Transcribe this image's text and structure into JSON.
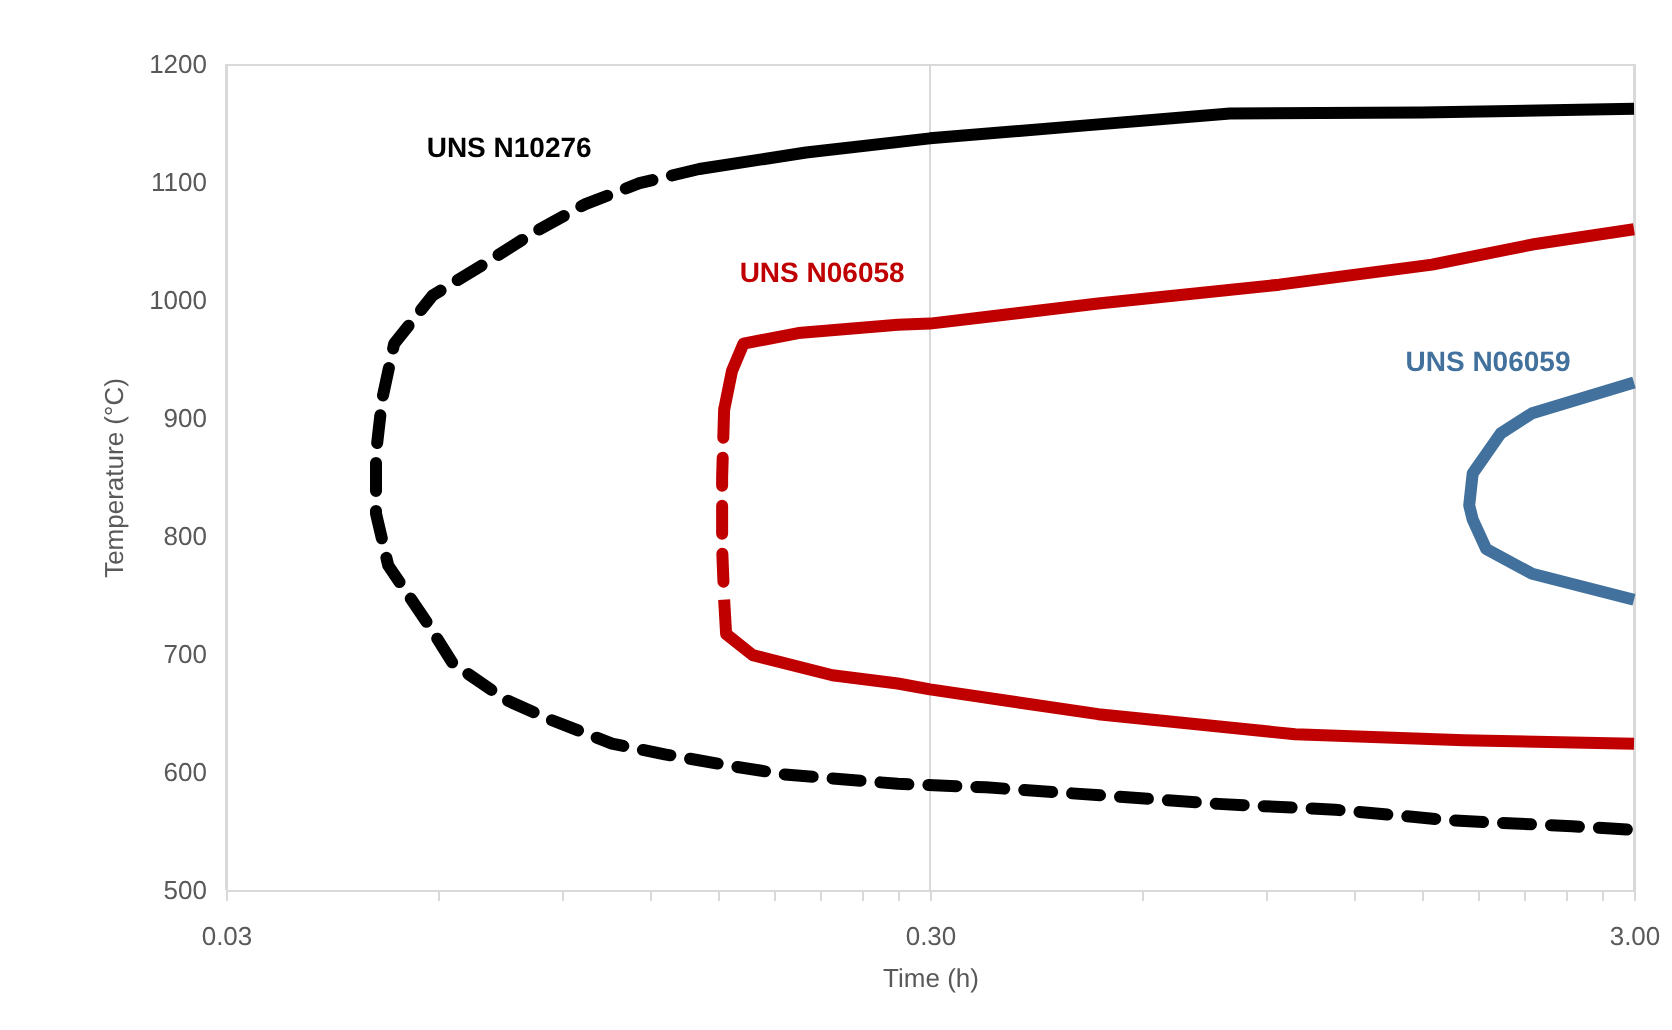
{
  "chart_data": {
    "type": "line",
    "xlabel": "Time (h)",
    "ylabel": "Temperature (°C)",
    "log": "x",
    "grid": "x",
    "xlim": [
      0.03,
      3
    ],
    "ylim": [
      500,
      1200
    ],
    "xticks": [
      0.03,
      {
        "value": 0.06,
        "label": null
      },
      {
        "value": 0.09,
        "label": null
      },
      {
        "value": 0.12,
        "label": null
      },
      {
        "value": 0.15,
        "label": null
      },
      {
        "value": 0.18,
        "label": null
      },
      {
        "value": 0.21,
        "label": null
      },
      {
        "value": 0.24,
        "label": null
      },
      {
        "value": 0.27,
        "label": null
      },
      {
        "value": 0.3,
        "label": "0.30"
      },
      {
        "value": 0.6,
        "label": null
      },
      {
        "value": 0.9,
        "label": null
      },
      {
        "value": 1.2,
        "label": null
      },
      {
        "value": 1.5,
        "label": null
      },
      {
        "value": 1.8,
        "label": null
      },
      {
        "value": 2.1,
        "label": null
      },
      {
        "value": 2.4,
        "label": null
      },
      {
        "value": 2.7,
        "label": null
      },
      {
        "value": 3,
        "label": "3.00"
      }
    ],
    "yticks": [
      500,
      600,
      700,
      800,
      900,
      1000,
      1100,
      1200
    ],
    "series": [
      {
        "name": "UNS N10276",
        "color": "#000000",
        "line_style": "solid",
        "x": [
          0.141,
          0.2,
          0.3,
          0.5,
          0.8,
          1.5,
          3
        ],
        "values": [
          1111,
          1125,
          1137,
          1148,
          1158,
          1159,
          1162
        ]
      },
      {
        "color": "#000000",
        "line_style": "dashed",
        "x": [
          0.141,
          0.116,
          0.097,
          0.082,
          0.07,
          0.059,
          0.052,
          0.05,
          0.049,
          0.049,
          0.051,
          0.058,
          0.063,
          0.075,
          0.087,
          0.106,
          0.126,
          0.157,
          0.186,
          0.27,
          0.36,
          0.53,
          0.77,
          1.13,
          1.65,
          2.45,
          3
        ],
        "values": [
          1111,
          1099,
          1081,
          1057,
          1031,
          1004,
          963,
          916,
          870,
          819,
          775,
          726,
          692,
          661,
          644,
          624,
          615,
          605,
          598,
          590,
          587,
          580,
          573,
          568,
          559,
          554,
          551
        ]
      },
      {
        "name": "UNS N06058",
        "color": "#c00000",
        "line_style": "solid",
        "x": [
          0.153,
          0.157,
          0.163,
          0.195,
          0.27,
          0.3,
          0.52,
          0.94,
          1.55,
          2.15,
          3
        ],
        "values": [
          907,
          940,
          963,
          972,
          979,
          980,
          997,
          1013,
          1030,
          1047,
          1060
        ]
      },
      {
        "color": "#c00000",
        "line_style": "dashed",
        "x": [
          0.153,
          0.152,
          0.152,
          0.153
        ],
        "values": [
          907,
          850,
          790,
          746
        ]
      },
      {
        "color": "#c00000",
        "line_style": "solid",
        "x": [
          0.153,
          0.154,
          0.168,
          0.218,
          0.27,
          0.3,
          0.52,
          0.99,
          1.72,
          3
        ],
        "values": [
          746,
          717,
          699,
          682,
          675,
          670,
          649,
          632,
          627,
          624
        ]
      },
      {
        "name": "UNS N06059",
        "color": "#41719c",
        "line_style": "solid",
        "x": [
          3,
          2.15,
          1.94,
          1.77,
          1.75,
          1.77,
          1.85,
          2.15,
          3
        ],
        "values": [
          930,
          904,
          887,
          853,
          826,
          814,
          789,
          768,
          746
        ]
      }
    ]
  }
}
